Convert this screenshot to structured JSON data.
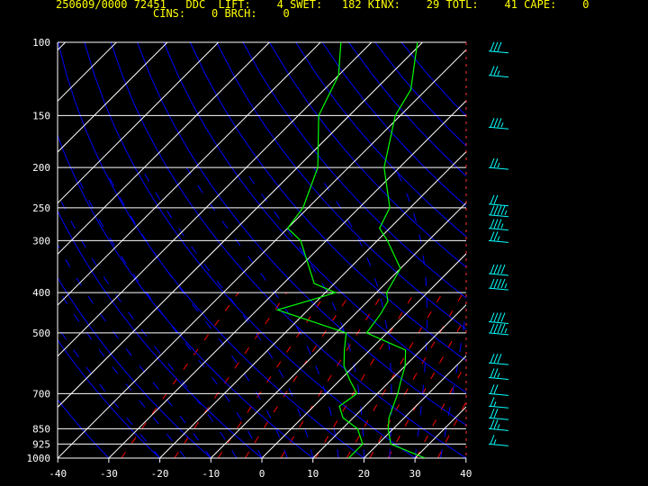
{
  "header": {
    "line1": "250609/0000 72451   DDC  LIFT:    4 SWET:   182 KINX:    29 TOTL:    41 CAPE:    0",
    "line2": "CINS:    0 BRCH:    0"
  },
  "colors": {
    "background": "#000000",
    "header_text": "#ffff00",
    "isobars_isotherms": "#ffffff",
    "dry_adiabats": "#0000ff",
    "moist_adiabats": "#0000ff",
    "mixing_ratio": "#ff0000",
    "temperature_profile": "#00ff00",
    "dewpoint_profile": "#00ff00",
    "wind_barbs": "#00ffff"
  },
  "chart_data": {
    "type": "skew-t log-p",
    "pressure_ticks": [
      "100",
      "150",
      "200",
      "250",
      "300",
      "400",
      "500",
      "700",
      "850",
      "925",
      "1000"
    ],
    "pressure_levels": [
      100,
      150,
      200,
      250,
      300,
      400,
      500,
      700,
      850,
      925,
      1000
    ],
    "temperature_ticks": [
      "-40",
      "-30",
      "-20",
      "-10",
      "0",
      "10",
      "20",
      "30",
      "40"
    ],
    "temperature_values": [
      -40,
      -30,
      -20,
      -10,
      0,
      10,
      20,
      30,
      40
    ],
    "xlim": [
      -40,
      40
    ],
    "ylim": [
      1000,
      100
    ],
    "y_scale": "log",
    "series": [
      {
        "role": "temperature",
        "points": [
          [
            1000,
            32
          ],
          [
            925,
            22.5
          ],
          [
            850,
            19
          ],
          [
            800,
            17
          ],
          [
            700,
            14
          ],
          [
            650,
            12
          ],
          [
            600,
            10
          ],
          [
            550,
            7
          ],
          [
            500,
            -4
          ],
          [
            450,
            -5
          ],
          [
            420,
            -6
          ],
          [
            400,
            -8
          ],
          [
            350,
            -10
          ],
          [
            300,
            -18
          ],
          [
            280,
            -22
          ],
          [
            250,
            -24
          ],
          [
            200,
            -33
          ],
          [
            150,
            -41
          ],
          [
            130,
            -43
          ],
          [
            100,
            -51
          ]
        ]
      },
      {
        "role": "dewpoint",
        "points": [
          [
            1000,
            17
          ],
          [
            925,
            17
          ],
          [
            850,
            13
          ],
          [
            800,
            8
          ],
          [
            750,
            5
          ],
          [
            700,
            6
          ],
          [
            650,
            2
          ],
          [
            600,
            -2
          ],
          [
            550,
            -5
          ],
          [
            500,
            -8
          ],
          [
            440,
            -26
          ],
          [
            420,
            -22
          ],
          [
            400,
            -18
          ],
          [
            380,
            -24
          ],
          [
            300,
            -35
          ],
          [
            280,
            -40
          ],
          [
            250,
            -41
          ],
          [
            200,
            -46
          ],
          [
            150,
            -56
          ],
          [
            120,
            -60
          ],
          [
            100,
            -66
          ]
        ]
      }
    ],
    "wind_barbs": [
      {
        "p": 105,
        "speed_kt": 30
      },
      {
        "p": 120,
        "speed_kt": 25
      },
      {
        "p": 160,
        "speed_kt": 35
      },
      {
        "p": 200,
        "speed_kt": 25
      },
      {
        "p": 245,
        "speed_kt": 20
      },
      {
        "p": 260,
        "speed_kt": 45
      },
      {
        "p": 280,
        "speed_kt": 35
      },
      {
        "p": 300,
        "speed_kt": 25
      },
      {
        "p": 360,
        "speed_kt": 40
      },
      {
        "p": 390,
        "speed_kt": 45
      },
      {
        "p": 470,
        "speed_kt": 40
      },
      {
        "p": 500,
        "speed_kt": 45
      },
      {
        "p": 590,
        "speed_kt": 30
      },
      {
        "p": 640,
        "speed_kt": 25
      },
      {
        "p": 700,
        "speed_kt": 20
      },
      {
        "p": 750,
        "speed_kt": 15
      },
      {
        "p": 800,
        "speed_kt": 20
      },
      {
        "p": 850,
        "speed_kt": 25
      },
      {
        "p": 925,
        "speed_kt": 15
      }
    ]
  }
}
